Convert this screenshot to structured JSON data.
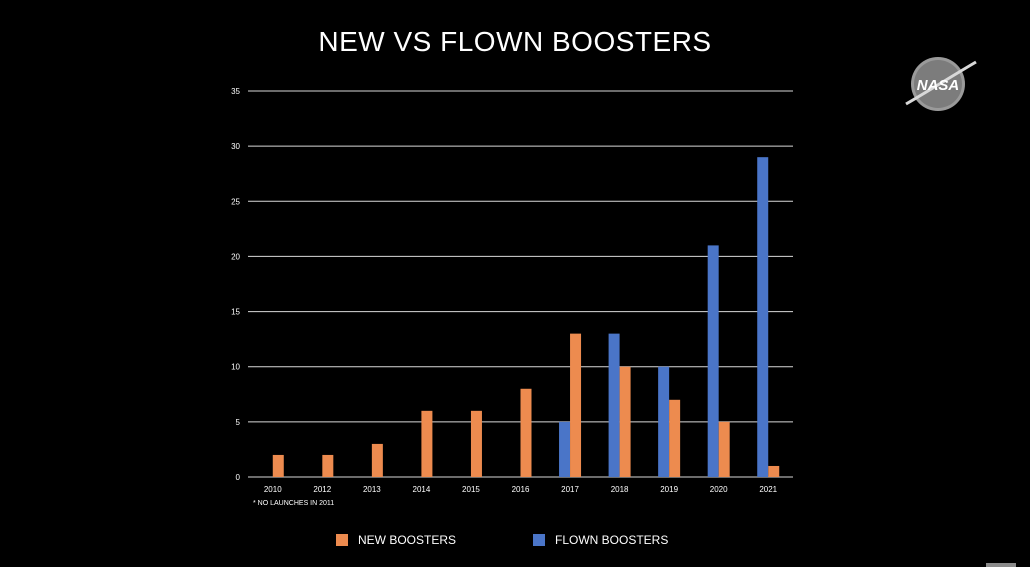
{
  "title": "NEW VS FLOWN BOOSTERS",
  "footnote": "* NO LAUNCHES IN 2011",
  "logo": {
    "text": "NASA",
    "icon": "nasa-meatball-logo"
  },
  "colors": {
    "background": "#000000",
    "new": "#ED8B4F",
    "flown": "#4A75C8",
    "grid": "#d9d9d9",
    "text": "#ffffff"
  },
  "chart_data": {
    "type": "bar",
    "title": "NEW VS FLOWN BOOSTERS",
    "categories": [
      "2010",
      "2012",
      "2013",
      "2014",
      "2015",
      "2016",
      "2017",
      "2018",
      "2019",
      "2020",
      "2021"
    ],
    "series": [
      {
        "name": "FLOWN BOOSTERS",
        "color": "#4A75C8",
        "values": [
          0,
          0,
          0,
          0,
          0,
          0,
          5,
          13,
          10,
          21,
          29
        ]
      },
      {
        "name": "NEW BOOSTERS",
        "color": "#ED8B4F",
        "values": [
          2,
          2,
          3,
          6,
          6,
          8,
          13,
          10,
          7,
          5,
          1
        ]
      }
    ],
    "ylim": [
      0,
      35
    ],
    "yticks": [
      0,
      5,
      10,
      15,
      20,
      25,
      30,
      35
    ],
    "grid": true,
    "legend_position": "bottom",
    "legend": [
      "NEW BOOSTERS",
      "FLOWN BOOSTERS"
    ]
  }
}
